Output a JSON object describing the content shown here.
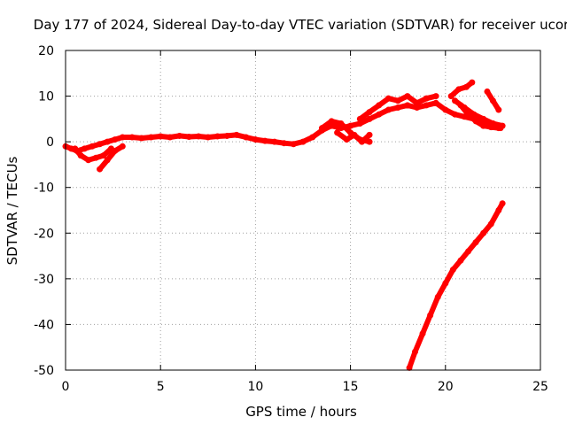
{
  "chart_data": {
    "type": "scatter",
    "title": "Day 177 of 2024, Sidereal Day-to-day VTEC variation (SDTVAR) for receiver ucor",
    "xlabel": "GPS time / hours",
    "ylabel": "SDTVAR / TECUs",
    "xlim": [
      0,
      25
    ],
    "ylim": [
      -50,
      20
    ],
    "xticks": [
      0,
      5,
      10,
      15,
      20,
      25
    ],
    "yticks": [
      -50,
      -40,
      -30,
      -20,
      -10,
      0,
      10,
      20
    ],
    "xtick_labels": [
      "0",
      "5",
      "10",
      "15",
      "20",
      "25"
    ],
    "ytick_labels": [
      "-50",
      "-40",
      "-30",
      "-20",
      "-10",
      "0",
      "10",
      "20"
    ],
    "grid": true,
    "color": "#ff0000",
    "series": [
      {
        "name": "main-track",
        "x": [
          0,
          0.3,
          0.6,
          1.0,
          1.4,
          1.8,
          2.2,
          2.6,
          3.0,
          3.5,
          4.0,
          4.5,
          5.0,
          5.5,
          6.0,
          6.5,
          7.0,
          7.5,
          8.0,
          8.5,
          9.0,
          9.5,
          10.0,
          10.5,
          11.0,
          11.5,
          12.0,
          12.5,
          13.0,
          13.5,
          14.0,
          14.5,
          15.0,
          15.5,
          16.0,
          16.5,
          17.0,
          17.5,
          18.0,
          18.5,
          19.0,
          19.5,
          20.0,
          20.5,
          21.0,
          21.5,
          22.0,
          22.5,
          23.0
        ],
        "y": [
          -1,
          -1.5,
          -2,
          -1.5,
          -1,
          -0.5,
          0,
          0.5,
          1,
          1,
          0.8,
          1,
          1.2,
          1,
          1.3,
          1.1,
          1.2,
          1,
          1.2,
          1.3,
          1.5,
          1,
          0.5,
          0.2,
          0,
          -0.3,
          -0.5,
          0,
          1,
          2.5,
          3.5,
          3,
          3.5,
          4,
          5,
          6,
          7,
          7.5,
          8,
          7.5,
          8,
          8.5,
          7,
          6,
          5.5,
          5,
          4.5,
          4,
          3.5
        ]
      },
      {
        "name": "upper-branch",
        "x": [
          15.5,
          16.0,
          16.5,
          17.0,
          17.5,
          18.0,
          18.5,
          19.0,
          19.5
        ],
        "y": [
          5,
          6.5,
          8,
          9.5,
          9,
          10,
          8.5,
          9.5,
          10
        ]
      },
      {
        "name": "dip-branch-a",
        "x": [
          0.5,
          0.8,
          1.2,
          1.6,
          2.0,
          2.4
        ],
        "y": [
          -1.5,
          -3,
          -4,
          -3.5,
          -3,
          -1.5
        ]
      },
      {
        "name": "dip-branch-b",
        "x": [
          1.8,
          2.2,
          2.6,
          3.0
        ],
        "y": [
          -6,
          -4,
          -2,
          -1
        ]
      },
      {
        "name": "mid-branch",
        "x": [
          13.5,
          14.0,
          14.5,
          15.0,
          15.5,
          16.0
        ],
        "y": [
          3,
          4.5,
          4,
          2,
          0.5,
          0
        ]
      },
      {
        "name": "mid-branch-b",
        "x": [
          14.3,
          14.8,
          15.2,
          15.6,
          16.0
        ],
        "y": [
          2,
          0.5,
          1.5,
          0,
          1.5
        ]
      },
      {
        "name": "late-upper-a",
        "x": [
          20.3,
          20.7,
          21.1,
          21.4
        ],
        "y": [
          10,
          11.5,
          12,
          13
        ]
      },
      {
        "name": "late-upper-b",
        "x": [
          20.5,
          21.0,
          21.5,
          22.0,
          22.5,
          22.9
        ],
        "y": [
          9,
          7.5,
          6,
          5,
          4,
          3
        ]
      },
      {
        "name": "late-upper-c",
        "x": [
          20.8,
          21.2,
          21.6,
          22.0,
          22.4,
          22.8
        ],
        "y": [
          8,
          6,
          4.5,
          3.5,
          3.2,
          3
        ]
      },
      {
        "name": "late-right",
        "x": [
          22.2,
          22.5,
          22.8
        ],
        "y": [
          11,
          9,
          7
        ]
      },
      {
        "name": "dropping-track",
        "x": [
          18.1,
          18.4,
          18.8,
          19.2,
          19.6,
          20.0,
          20.4,
          20.8,
          21.2,
          21.6,
          22.0,
          22.4,
          22.8,
          23.0
        ],
        "y": [
          -49.5,
          -46,
          -42,
          -38,
          -34,
          -31,
          -28,
          -26,
          -24,
          -22,
          -20,
          -18,
          -15,
          -13.5
        ]
      }
    ]
  }
}
